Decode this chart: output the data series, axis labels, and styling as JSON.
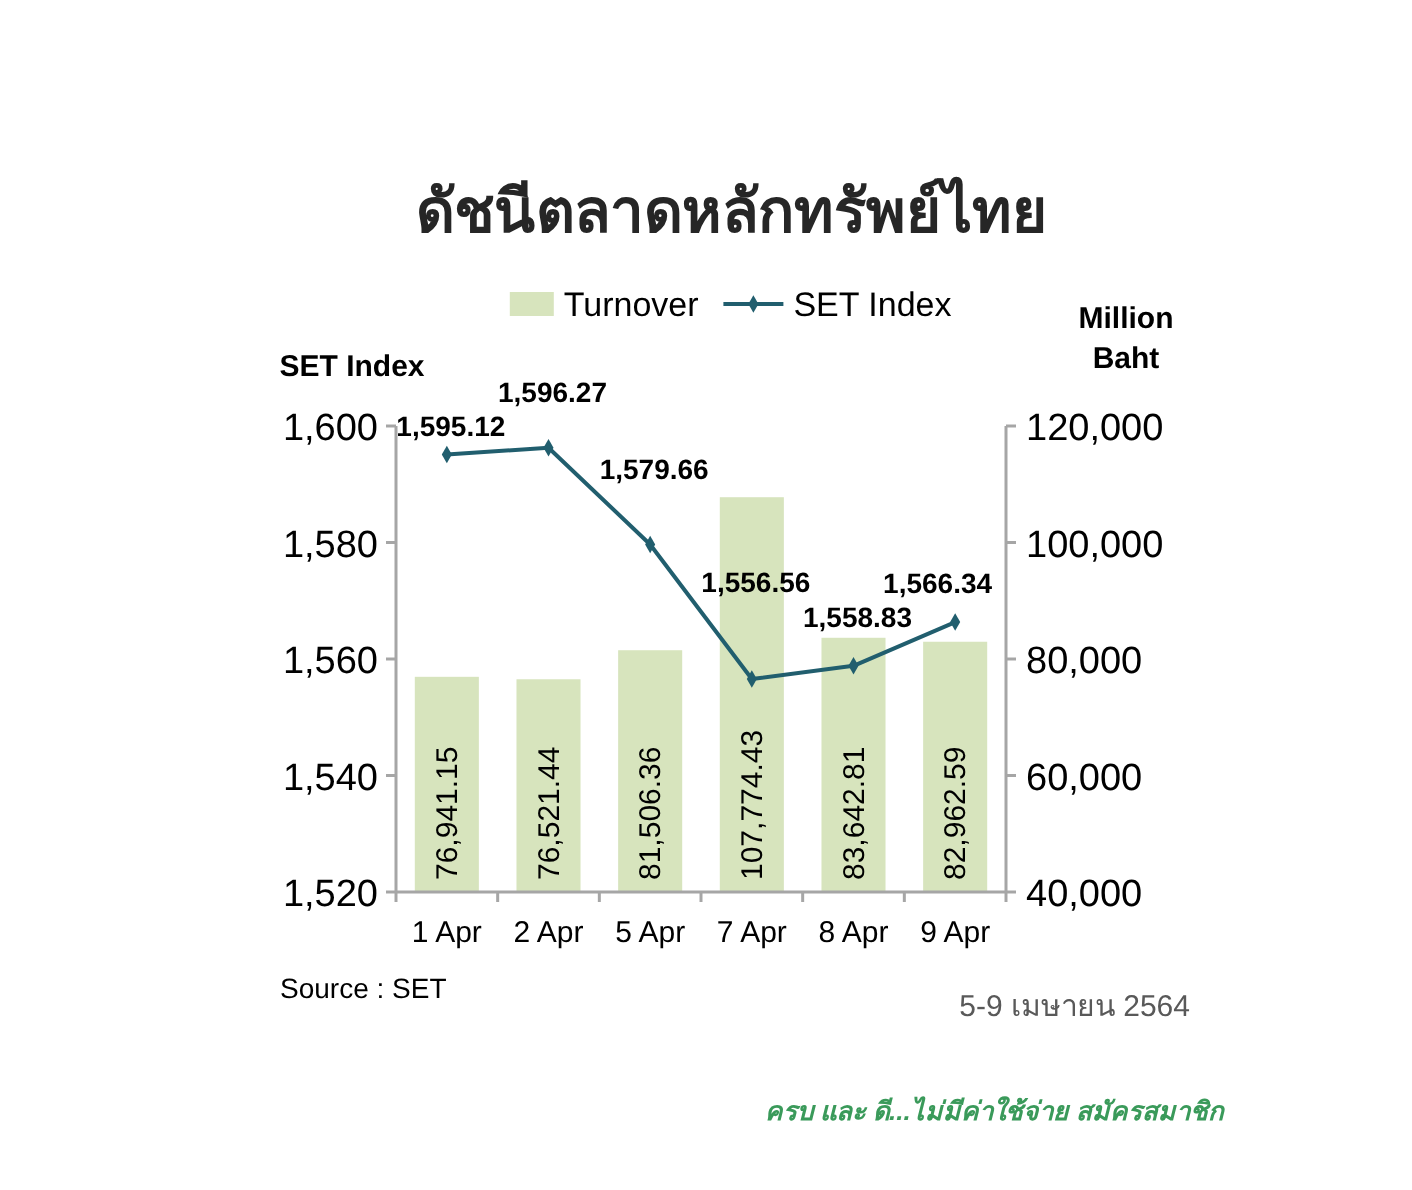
{
  "chart_data": {
    "type": "bar",
    "title": "ดัชนีตลาดหลักทรัพย์ไทย",
    "ylabel": "SET Index",
    "y2label": "Million Baht",
    "categories": [
      "1 Apr",
      "2 Apr",
      "5 Apr",
      "7 Apr",
      "8 Apr",
      "9 Apr"
    ],
    "series": [
      {
        "name": "Turnover",
        "axis": "y2",
        "color": "#d7e4bd",
        "values": [
          76941.15,
          76521.44,
          81506.36,
          107774.43,
          83642.81,
          82962.59
        ],
        "value_labels": [
          "76,941.15",
          "76,521.44",
          "81,506.36",
          "107,774.43",
          "83,642.81",
          "82,962.59"
        ]
      },
      {
        "name": "SET Index",
        "type": "line",
        "axis": "y",
        "color": "#215e6e",
        "values": [
          1595.12,
          1596.27,
          1579.66,
          1556.56,
          1558.83,
          1566.34
        ],
        "value_labels": [
          "1,595.12",
          "1,596.27",
          "1,579.66",
          "1,556.56",
          "1,558.83",
          "1,566.34"
        ]
      }
    ],
    "ylim": [
      1520,
      1600
    ],
    "yticks": [
      {
        "value": 1520,
        "label": "1,520"
      },
      {
        "value": 1540,
        "label": "1,540"
      },
      {
        "value": 1560,
        "label": "1,560"
      },
      {
        "value": 1580,
        "label": "1,580"
      },
      {
        "value": 1600,
        "label": "1,600"
      }
    ],
    "y2lim": [
      40000,
      120000
    ],
    "y2ticks": [
      {
        "value": 40000,
        "label": "40,000"
      },
      {
        "value": 60000,
        "label": "60,000"
      },
      {
        "value": 80000,
        "label": "80,000"
      },
      {
        "value": 100000,
        "label": "100,000"
      },
      {
        "value": 120000,
        "label": "120,000"
      }
    ],
    "legend": "top",
    "marker": "diamond",
    "line_style": "solid",
    "annotations": [
      "Source : SET",
      "5-9 เมษายน 2564",
      "ครบ และ ดี...ไม่มีค่าใช้จ่าย สมัครสมาชิก"
    ]
  }
}
